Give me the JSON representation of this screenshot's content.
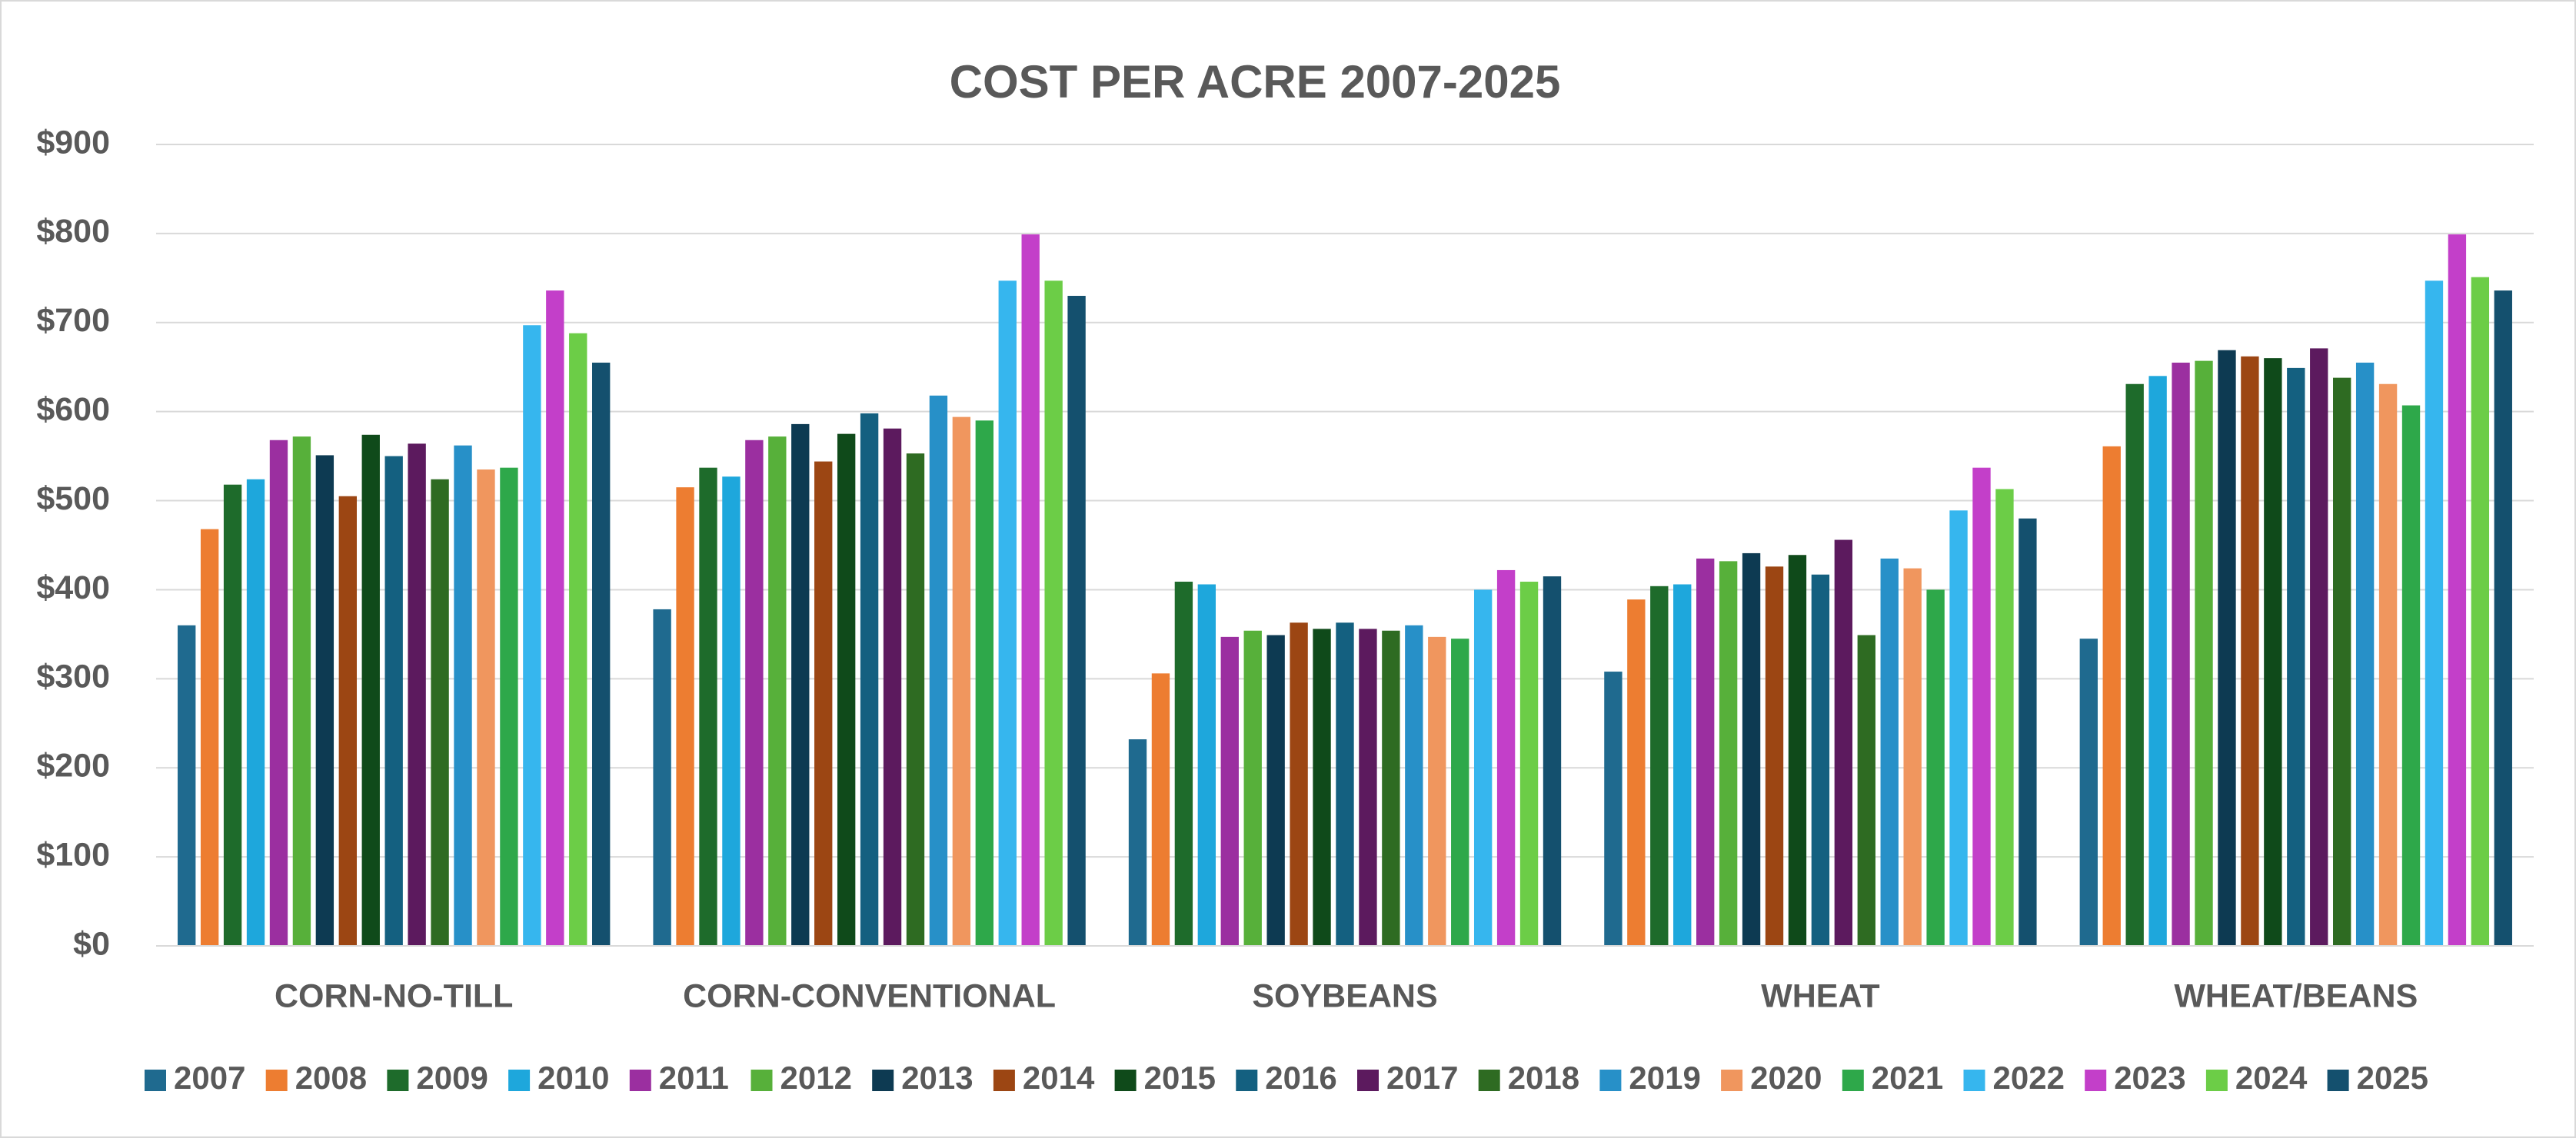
{
  "chart_data": {
    "type": "bar",
    "title": "COST PER ACRE 2007-2025",
    "categories": [
      "CORN-NO-TILL",
      "CORN-CONVENTIONAL",
      "SOYBEANS",
      "WHEAT",
      "WHEAT/BEANS"
    ],
    "series": [
      {
        "name": "2007",
        "color": "#1f6a8f",
        "values": [
          360,
          378,
          232,
          308,
          345
        ]
      },
      {
        "name": "2008",
        "color": "#ed7d31",
        "values": [
          468,
          515,
          306,
          389,
          561
        ]
      },
      {
        "name": "2009",
        "color": "#1e6b2b",
        "values": [
          518,
          537,
          409,
          404,
          631
        ]
      },
      {
        "name": "2010",
        "color": "#1ea7dc",
        "values": [
          524,
          527,
          406,
          406,
          640
        ]
      },
      {
        "name": "2011",
        "color": "#9b2fa0",
        "values": [
          568,
          568,
          347,
          435,
          655
        ]
      },
      {
        "name": "2012",
        "color": "#57b03a",
        "values": [
          572,
          572,
          354,
          432,
          657
        ]
      },
      {
        "name": "2013",
        "color": "#0d3a52",
        "values": [
          551,
          586,
          349,
          441,
          669
        ]
      },
      {
        "name": "2014",
        "color": "#9c4613",
        "values": [
          505,
          544,
          363,
          426,
          662
        ]
      },
      {
        "name": "2015",
        "color": "#0f4a1a",
        "values": [
          574,
          575,
          356,
          439,
          660
        ]
      },
      {
        "name": "2016",
        "color": "#146080",
        "values": [
          550,
          598,
          363,
          417,
          649
        ]
      },
      {
        "name": "2017",
        "color": "#5c1a5e",
        "values": [
          564,
          581,
          356,
          456,
          671
        ]
      },
      {
        "name": "2018",
        "color": "#2e6b22",
        "values": [
          524,
          553,
          354,
          349,
          638
        ]
      },
      {
        "name": "2019",
        "color": "#2790c8",
        "values": [
          562,
          618,
          360,
          435,
          655
        ]
      },
      {
        "name": "2020",
        "color": "#f0965e",
        "values": [
          535,
          594,
          347,
          424,
          631
        ]
      },
      {
        "name": "2021",
        "color": "#2ea84a",
        "values": [
          537,
          590,
          345,
          400,
          607
        ]
      },
      {
        "name": "2022",
        "color": "#36b6ee",
        "values": [
          697,
          747,
          400,
          489,
          747
        ]
      },
      {
        "name": "2023",
        "color": "#c33fc9",
        "values": [
          736,
          799,
          422,
          537,
          799
        ]
      },
      {
        "name": "2024",
        "color": "#6ccd47",
        "values": [
          688,
          747,
          409,
          513,
          751
        ]
      },
      {
        "name": "2025",
        "color": "#14506e",
        "values": [
          655,
          730,
          415,
          480,
          736
        ]
      }
    ],
    "ylim": [
      0,
      900
    ],
    "yticks": [
      {
        "value": 0,
        "label": "$0"
      },
      {
        "value": 100,
        "label": "$100"
      },
      {
        "value": 200,
        "label": "$200"
      },
      {
        "value": 300,
        "label": "$300"
      },
      {
        "value": 400,
        "label": "$400"
      },
      {
        "value": 500,
        "label": "$500"
      },
      {
        "value": 600,
        "label": "$600"
      },
      {
        "value": 700,
        "label": "$700"
      },
      {
        "value": 800,
        "label": "$800"
      },
      {
        "value": 900,
        "label": "$900"
      }
    ],
    "grid": true,
    "legend": "bottom"
  }
}
